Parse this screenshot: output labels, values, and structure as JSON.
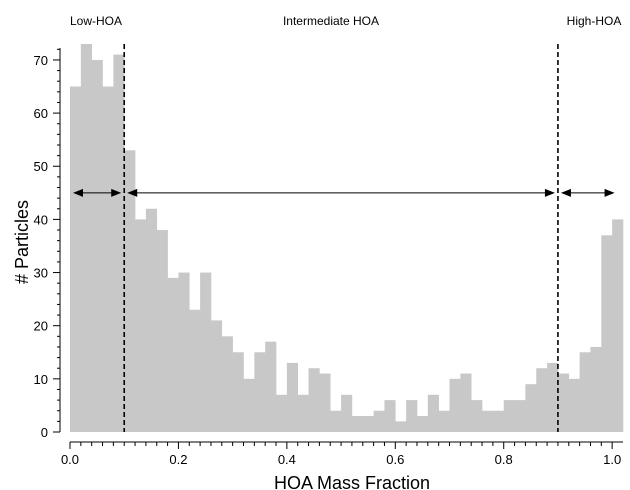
{
  "chart_data": {
    "type": "bar",
    "subtype": "histogram",
    "xlabel": "HOA Mass Fraction",
    "ylabel": "# Particles",
    "xlim": [
      0,
      1.02
    ],
    "ylim": [
      0,
      73
    ],
    "x_ticks": [
      0.0,
      0.2,
      0.4,
      0.6,
      0.8,
      1.0
    ],
    "x_tick_labels": [
      "0.0",
      "0.2",
      "0.4",
      "0.6",
      "0.8",
      "1.0"
    ],
    "y_ticks": [
      0,
      10,
      20,
      30,
      40,
      50,
      60,
      70
    ],
    "y_tick_labels": [
      "0",
      "10",
      "20",
      "30",
      "40",
      "50",
      "60",
      "70"
    ],
    "bin_width": 0.02,
    "bin_starts": [
      0.0,
      0.02,
      0.04,
      0.06,
      0.08,
      0.1,
      0.12,
      0.14,
      0.16,
      0.18,
      0.2,
      0.22,
      0.24,
      0.26,
      0.28,
      0.3,
      0.32,
      0.34,
      0.36,
      0.38,
      0.4,
      0.42,
      0.44,
      0.46,
      0.48,
      0.5,
      0.52,
      0.54,
      0.56,
      0.58,
      0.6,
      0.62,
      0.64,
      0.66,
      0.68,
      0.7,
      0.72,
      0.74,
      0.76,
      0.78,
      0.8,
      0.82,
      0.84,
      0.86,
      0.88,
      0.9,
      0.92,
      0.94,
      0.96,
      0.98,
      1.0
    ],
    "values": [
      65,
      73,
      70,
      65,
      71,
      53,
      40,
      42,
      38,
      29,
      30,
      23,
      30,
      21,
      18,
      15,
      10,
      15,
      17,
      7,
      13,
      7,
      12,
      11,
      4,
      7,
      3,
      3,
      4,
      6,
      2,
      6,
      3,
      7,
      4,
      10,
      11,
      6,
      4,
      4,
      6,
      6,
      9,
      12,
      13,
      11,
      10,
      15,
      16,
      37,
      40
    ],
    "bar_color": "#c8c8c8",
    "dividers": [
      0.1,
      0.9
    ],
    "region_labels": [
      "Low-HOA",
      "Intermediate HOA",
      "High-HOA"
    ],
    "region_arrow_y": 45,
    "grid": false,
    "legend": "none"
  }
}
